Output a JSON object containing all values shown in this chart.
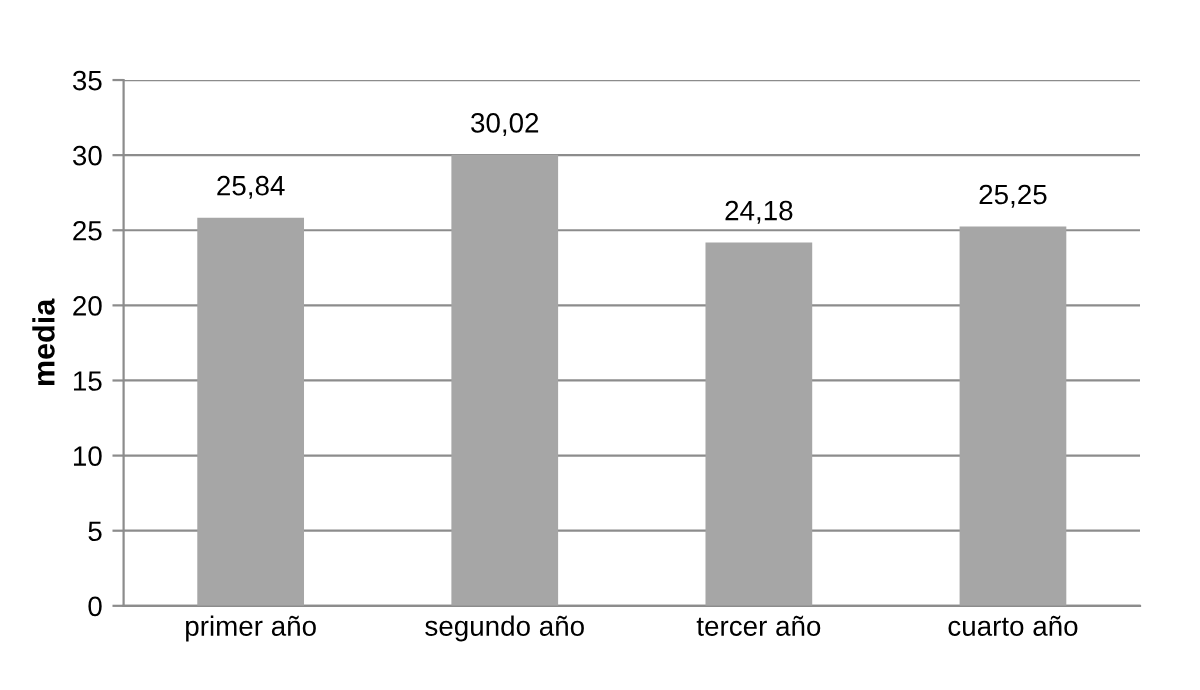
{
  "chart_data": {
    "type": "bar",
    "ylabel": "media",
    "categories": [
      "primer año",
      "segundo año",
      "tercer año",
      "cuarto año"
    ],
    "values": [
      25.84,
      30.02,
      24.18,
      25.25
    ],
    "value_labels": [
      "25,84",
      "30,02",
      "24,18",
      "25,25"
    ],
    "color": "#a6a6a6",
    "ylim": [
      0,
      35
    ],
    "yticks": [
      0,
      5,
      10,
      15,
      20,
      25,
      30,
      35
    ],
    "grid": "y",
    "legend": false
  }
}
